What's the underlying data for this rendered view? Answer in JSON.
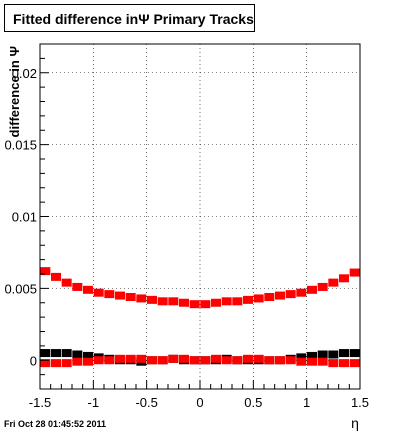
{
  "chart_data": {
    "type": "scatter",
    "title": "Fitted difference inΨ   Primary Tracks",
    "xlabel": "η",
    "ylabel": "difference in Ψ",
    "xlim": [
      -1.5,
      1.5
    ],
    "ylim": [
      -0.002,
      0.022
    ],
    "grid": true,
    "x_ticks": [
      -1.5,
      -1,
      -0.5,
      0,
      0.5,
      1,
      1.5
    ],
    "x_tick_labels": [
      "-1.5",
      "-1",
      "-0.5",
      "0",
      "0.5",
      "1",
      "1.5"
    ],
    "y_ticks": [
      0,
      0.005,
      0.01,
      0.015,
      0.02
    ],
    "y_tick_labels": [
      "0",
      "0.005",
      "0.01",
      "0.015",
      "0.02"
    ],
    "series": [
      {
        "color": "#ff0000",
        "marker": "square",
        "x": [
          -1.45,
          -1.35,
          -1.25,
          -1.15,
          -1.05,
          -0.95,
          -0.85,
          -0.75,
          -0.65,
          -0.55,
          -0.45,
          -0.35,
          -0.25,
          -0.15,
          -0.05,
          0.05,
          0.15,
          0.25,
          0.35,
          0.45,
          0.55,
          0.65,
          0.75,
          0.85,
          0.95,
          1.05,
          1.15,
          1.25,
          1.35,
          1.45
        ],
        "y": [
          0.0062,
          0.0058,
          0.0054,
          0.0051,
          0.0049,
          0.0047,
          0.0046,
          0.0045,
          0.0044,
          0.0043,
          0.0042,
          0.0041,
          0.0041,
          0.004,
          0.0039,
          0.0039,
          0.004,
          0.0041,
          0.0041,
          0.0042,
          0.0043,
          0.0044,
          0.0045,
          0.0046,
          0.0047,
          0.0049,
          0.0051,
          0.0054,
          0.0057,
          0.0061
        ]
      },
      {
        "color": "#000000",
        "marker": "square",
        "x": [
          -1.45,
          -1.35,
          -1.25,
          -1.15,
          -1.05,
          -0.95,
          -0.85,
          -0.75,
          -0.65,
          -0.55,
          -0.45,
          -0.35,
          -0.25,
          -0.15,
          -0.05,
          0.05,
          0.15,
          0.25,
          0.35,
          0.45,
          0.55,
          0.65,
          0.75,
          0.85,
          0.95,
          1.05,
          1.15,
          1.25,
          1.35,
          1.45
        ],
        "y": [
          0.0005,
          0.0005,
          0.0005,
          0.0004,
          0.0003,
          0.0002,
          0.0001,
          0.0,
          0.0,
          -0.0001,
          0.0,
          0.0,
          0.0001,
          0.0,
          0.0,
          0.0,
          0.0,
          0.0001,
          0.0,
          0.0,
          0.0,
          0.0,
          0.0,
          0.0001,
          0.0002,
          0.0003,
          0.0004,
          0.0004,
          0.0005,
          0.0005
        ]
      },
      {
        "color": "#ff0000",
        "marker": "square",
        "x": [
          -1.45,
          -1.35,
          -1.25,
          -1.15,
          -1.05,
          -0.95,
          -0.85,
          -0.75,
          -0.65,
          -0.55,
          -0.45,
          -0.35,
          -0.25,
          -0.15,
          -0.05,
          0.05,
          0.15,
          0.25,
          0.35,
          0.45,
          0.55,
          0.65,
          0.75,
          0.85,
          0.95,
          1.05,
          1.15,
          1.25,
          1.35,
          1.45
        ],
        "y": [
          -0.0002,
          -0.0002,
          -0.0002,
          -0.0001,
          -0.0001,
          0.0,
          0.0,
          0.0001,
          0.0001,
          0.0001,
          0.0,
          0.0,
          0.0001,
          0.0001,
          0.0,
          0.0,
          0.0001,
          0.0,
          0.0,
          0.0001,
          0.0001,
          0.0,
          0.0,
          0.0,
          -0.0001,
          -0.0001,
          -0.0001,
          -0.0002,
          -0.0002,
          -0.0002
        ]
      }
    ]
  },
  "footer": {
    "timestamp": "Fri Oct 28 01:45:52 2011"
  }
}
